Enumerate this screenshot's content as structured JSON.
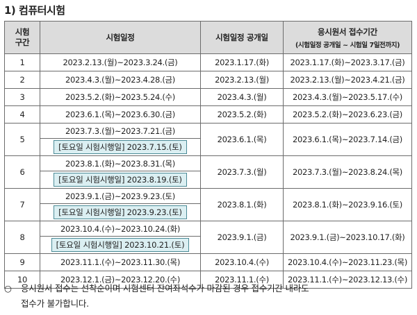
{
  "title": "1) 컴퓨터시험",
  "headers": {
    "section": "시험\n구간",
    "exam_dates": "시험일정",
    "announce": "시험일정 공개일",
    "application": "응시원서 접수기간",
    "application_sub": "(시험일정 공개일 ~ 시험일 7일전까지)"
  },
  "rows": [
    {
      "no": "1",
      "exam": "2023.2.13.(월)~2023.3.24.(금)",
      "announce": "2023.1.17.(화)",
      "apply": "2023.1.17.(화)~2023.3.17.(금)"
    },
    {
      "no": "2",
      "exam": "2023.4.3.(월)~2023.4.28.(금)",
      "announce": "2023.2.13.(월)",
      "apply": "2023.2.13.(월)~2023.4.21.(금)"
    },
    {
      "no": "3",
      "exam": "2023.5.2.(화)~2023.5.24.(수)",
      "announce": "2023.4.3.(월)",
      "apply": "2023.4.3.(월)~2023.5.17.(수)"
    },
    {
      "no": "4",
      "exam": "2023.6.1.(목)~2023.6.30.(금)",
      "announce": "2023.5.2.(화)",
      "apply": "2023.5.2.(화)~2023.6.23.(금)"
    },
    {
      "no": "5",
      "exam": "2023.7.3.(월)~2023.7.21.(금)",
      "sat": "[토요일 시험시행일] 2023.7.15.(토)",
      "announce": "2023.6.1.(목)",
      "apply": "2023.6.1.(목)~2023.7.14.(금)"
    },
    {
      "no": "6",
      "exam": "2023.8.1.(화)~2023.8.31.(목)",
      "sat": "[토요일 시험시행일] 2023.8.19.(토)",
      "announce": "2023.7.3.(월)",
      "apply": "2023.7.3.(월)~2023.8.24.(목)"
    },
    {
      "no": "7",
      "exam": "2023.9.1.(금)~2023.9.23.(토)",
      "sat": "[토요일 시험시행일] 2023.9.23.(토)",
      "announce": "2023.8.1.(화)",
      "apply": "2023.8.1.(화)~2023.9.16.(토)"
    },
    {
      "no": "8",
      "exam": "2023.10.4.(수)~2023.10.24.(화)",
      "sat": "[토요일 시험시행일] 2023.10.21.(토)",
      "announce": "2023.9.1.(금)",
      "apply": "2023.9.1.(금)~2023.10.17.(화)"
    },
    {
      "no": "9",
      "exam": "2023.11.1.(수)~2023.11.30.(목)",
      "announce": "2023.10.4.(수)",
      "apply": "2023.10.4.(수)~2023.11.23.(목)"
    },
    {
      "no": "10",
      "exam": "2023.12.1.(금)~2023.12.20.(수)",
      "announce": "2023.11.1.(수)",
      "apply": "2023.11.1.(수)~2023.12.13.(수)"
    }
  ],
  "note": {
    "bullet": "○",
    "line1": "응시원서 접수는 선착순이며 시험센터 잔여좌석수가 마감된 경우 접수기간 내라도",
    "line2": "접수가 불가합니다."
  }
}
